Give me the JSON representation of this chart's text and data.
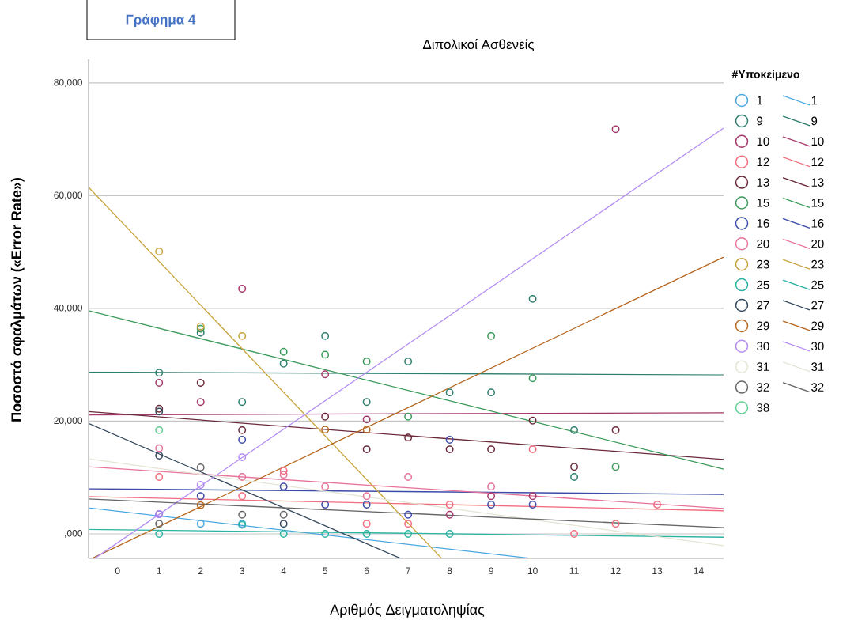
{
  "chart_data": {
    "type": "scatter",
    "title": "Διπολικοί Ασθενείς",
    "xlabel": "Αριθμός Δειγματοληψίας",
    "ylabel": "Ποσοστό σφαλμάτων («Error Rate»)",
    "legend_title": "#Υποκείμενο",
    "annotations": [
      "Γράφημα 4"
    ],
    "xlim": [
      -0.7,
      14.6
    ],
    "ylim": [
      -4350,
      84200
    ],
    "xticks": [
      0,
      1,
      2,
      3,
      4,
      5,
      6,
      7,
      8,
      9,
      10,
      11,
      12,
      13,
      14
    ],
    "yticks": [
      {
        "value": 0,
        "label": ",000"
      },
      {
        "value": 20000,
        "label": "20,000"
      },
      {
        "value": 40000,
        "label": "40,000"
      },
      {
        "value": 60000,
        "label": "60,000"
      },
      {
        "value": 80000,
        "label": "80,000"
      }
    ],
    "grid": "y",
    "legend": "right",
    "marker": "circle",
    "series": [
      {
        "name": "1",
        "color": "#4aa8e0",
        "x": [
          2,
          3
        ],
        "values": [
          1800,
          1800
        ]
      },
      {
        "name": "9",
        "color": "#2e7d6e",
        "x": [
          1,
          2,
          3,
          4,
          5,
          6,
          7,
          8,
          9,
          10,
          11,
          11
        ],
        "values": [
          28600,
          35700,
          23400,
          30200,
          35100,
          23400,
          30600,
          25100,
          25100,
          41700,
          18400,
          10100
        ]
      },
      {
        "name": "10",
        "color": "#a3386a",
        "x": [
          1,
          2,
          3,
          5,
          6,
          8,
          9,
          10,
          12
        ],
        "values": [
          26800,
          23400,
          43500,
          28300,
          20300,
          3400,
          6700,
          6700,
          71800
        ]
      },
      {
        "name": "12",
        "color": "#f26d7d",
        "x": [
          1,
          3,
          4,
          6,
          7,
          8,
          10,
          11,
          12,
          13
        ],
        "values": [
          10100,
          6700,
          11200,
          1800,
          1800,
          5200,
          15000,
          0,
          1800,
          5200
        ]
      },
      {
        "name": "13",
        "color": "#6b2a3a",
        "x": [
          1,
          2,
          3,
          5,
          6,
          7,
          8,
          9,
          10,
          11,
          12
        ],
        "values": [
          22200,
          26800,
          18400,
          20800,
          15000,
          17100,
          15000,
          15000,
          20100,
          11900,
          18400
        ]
      },
      {
        "name": "15",
        "color": "#3a9a5a",
        "x": [
          2,
          4,
          5,
          6,
          7,
          9,
          10,
          12
        ],
        "values": [
          36400,
          32300,
          31800,
          30600,
          20800,
          35100,
          27600,
          11900
        ]
      },
      {
        "name": "16",
        "color": "#3b4ba8",
        "x": [
          1,
          2,
          3,
          4,
          5,
          6,
          7,
          8,
          9,
          10
        ],
        "values": [
          3500,
          6700,
          16700,
          8400,
          5200,
          5200,
          3400,
          16700,
          5200,
          5200
        ]
      },
      {
        "name": "20",
        "color": "#e8729a",
        "x": [
          1,
          3,
          4,
          5,
          6,
          7,
          9
        ],
        "values": [
          15200,
          10100,
          10500,
          8400,
          6700,
          10100,
          8400
        ]
      },
      {
        "name": "23",
        "color": "#c8a33a",
        "x": [
          1,
          2,
          3
        ],
        "values": [
          50100,
          36800,
          35100
        ]
      },
      {
        "name": "25",
        "color": "#2bb3a3",
        "x": [
          1,
          3,
          4,
          5,
          6,
          7,
          8
        ],
        "values": [
          0,
          1600,
          0,
          0,
          0,
          0,
          0
        ]
      },
      {
        "name": "27",
        "color": "#34495e",
        "x": [
          1,
          1,
          4
        ],
        "values": [
          21700,
          13900,
          1800
        ]
      },
      {
        "name": "29",
        "color": "#b5651d",
        "x": [
          2,
          5,
          6
        ],
        "values": [
          5100,
          18500,
          18500
        ]
      },
      {
        "name": "30",
        "color": "#b48cf2",
        "x": [
          1,
          2,
          3
        ],
        "values": [
          3500,
          8700,
          13600
        ]
      },
      {
        "name": "31",
        "color": "#e4e4d4"
      },
      {
        "name": "32",
        "color": "#666666",
        "x": [
          1,
          2,
          3,
          4
        ],
        "values": [
          1800,
          11800,
          3400,
          3400
        ]
      },
      {
        "name": "38",
        "color": "#5fcf90",
        "x": [
          1
        ],
        "values": [
          18400
        ]
      },
      {
        "type": "line",
        "marker": "none",
        "name": "1",
        "color": "#4aa8e0",
        "x": [
          -0.7,
          9.9
        ],
        "values": [
          4600,
          -4300
        ]
      },
      {
        "type": "line",
        "marker": "none",
        "name": "9",
        "color": "#2e7d6e",
        "x": [
          -0.7,
          14.6
        ],
        "values": [
          28700,
          28200
        ]
      },
      {
        "type": "line",
        "marker": "none",
        "name": "10",
        "color": "#a3386a",
        "x": [
          -0.7,
          14.6
        ],
        "values": [
          21100,
          21500
        ]
      },
      {
        "type": "line",
        "marker": "none",
        "name": "12",
        "color": "#f26d7d",
        "x": [
          -0.7,
          14.6
        ],
        "values": [
          6600,
          4100
        ]
      },
      {
        "type": "line",
        "marker": "none",
        "name": "13",
        "color": "#6b2a3a",
        "x": [
          -0.7,
          14.6
        ],
        "values": [
          21700,
          13200
        ]
      },
      {
        "type": "line",
        "marker": "none",
        "name": "15",
        "color": "#3a9a5a",
        "x": [
          -0.7,
          14.6
        ],
        "values": [
          39600,
          11500
        ]
      },
      {
        "type": "line",
        "marker": "none",
        "name": "16",
        "color": "#3b4ba8",
        "x": [
          -0.7,
          14.6
        ],
        "values": [
          8000,
          7000
        ]
      },
      {
        "type": "line",
        "marker": "none",
        "name": "20",
        "color": "#e8729a",
        "x": [
          -0.7,
          14.6
        ],
        "values": [
          11900,
          4500
        ]
      },
      {
        "type": "line",
        "marker": "none",
        "name": "23",
        "color": "#c8a33a",
        "x": [
          -0.7,
          7.8
        ],
        "values": [
          61500,
          -4300
        ]
      },
      {
        "type": "line",
        "marker": "none",
        "name": "25",
        "color": "#2bb3a3",
        "x": [
          -0.7,
          14.6
        ],
        "values": [
          800,
          -600
        ]
      },
      {
        "type": "line",
        "marker": "none",
        "name": "27",
        "color": "#34495e",
        "x": [
          -0.7,
          6.8
        ],
        "values": [
          19600,
          -4300
        ]
      },
      {
        "type": "line",
        "marker": "none",
        "name": "29",
        "color": "#b5651d",
        "x": [
          -0.6,
          14.6
        ],
        "values": [
          -4300,
          49100
        ]
      },
      {
        "type": "line",
        "marker": "none",
        "name": "30",
        "color": "#b48cf2",
        "x": [
          -0.54,
          14.6
        ],
        "values": [
          -4300,
          72000
        ]
      },
      {
        "type": "line",
        "marker": "none",
        "name": "31",
        "color": "#e4e4d4",
        "x": [
          -0.7,
          14.6
        ],
        "values": [
          13300,
          -2100
        ]
      },
      {
        "type": "line",
        "marker": "none",
        "name": "32",
        "color": "#666666",
        "x": [
          -0.7,
          14.6
        ],
        "values": [
          6200,
          1100
        ]
      }
    ]
  }
}
